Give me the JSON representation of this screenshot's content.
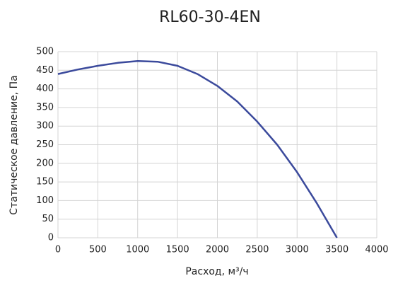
{
  "chart_data": {
    "type": "line",
    "title": "RL60-30-4EN",
    "x_label": "Расход, м³/ч",
    "y_label": "Статическое давление, Па",
    "x": [
      0,
      250,
      500,
      750,
      1000,
      1250,
      1500,
      1750,
      2000,
      2250,
      2500,
      2750,
      3000,
      3250,
      3500
    ],
    "series": [
      {
        "name": "RL60-30-4EN",
        "color": "#3b4a9c",
        "values": [
          440,
          452,
          462,
          470,
          475,
          473,
          462,
          440,
          408,
          366,
          312,
          250,
          176,
          92,
          0
        ]
      }
    ],
    "xlim": [
      0,
      4000
    ],
    "xticks": [
      0,
      500,
      1000,
      1500,
      2000,
      2500,
      3000,
      3500,
      4000
    ],
    "ylim": [
      0,
      500
    ],
    "yticks": [
      0,
      50,
      100,
      150,
      200,
      250,
      300,
      350,
      400,
      450,
      500
    ],
    "grid": true
  }
}
